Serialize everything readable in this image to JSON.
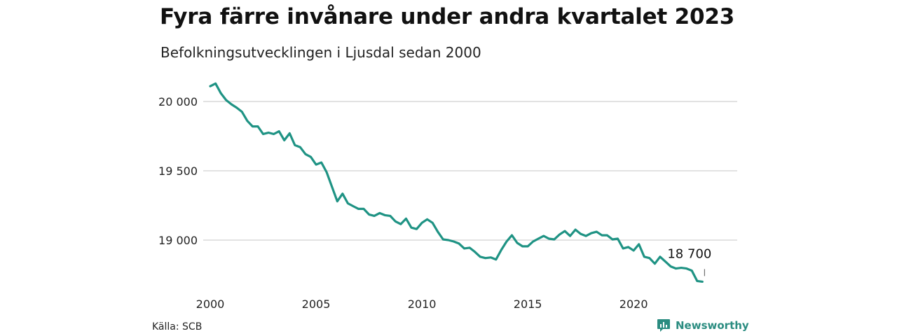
{
  "header": {
    "title": "Fyra färre invånare under andra kvartalet 2023",
    "subtitle": "Befolkningsutvecklingen i Ljusdal sedan 2000"
  },
  "footer": {
    "source": "Källa: SCB",
    "brand": "Newsworthy",
    "brand_icon": "bar-chart-speech-bubble-icon"
  },
  "colors": {
    "line": "#1f9384",
    "grid": "#d9d9d9",
    "brand": "#2a8c80"
  },
  "chart_data": {
    "type": "line",
    "title": "Fyra färre invånare under andra kvartalet 2023",
    "subtitle": "Befolkningsutvecklingen i Ljusdal sedan 2000",
    "xlabel": "",
    "ylabel": "",
    "xlim": [
      2000,
      2024
    ],
    "ylim": [
      18650,
      20150
    ],
    "grid": true,
    "legend": "none",
    "x_ticks": [
      2000,
      2005,
      2010,
      2015,
      2020
    ],
    "x_tick_labels": [
      "2000",
      "2005",
      "2010",
      "2015",
      "2020"
    ],
    "y_ticks": [
      19000,
      19500,
      20000
    ],
    "y_tick_labels": [
      "19 000",
      "19 500",
      "20 000"
    ],
    "annotation": {
      "text": "18 700",
      "x": 2023.25,
      "y": 18700
    },
    "series": [
      {
        "x": [
          2000.0,
          2000.25,
          2000.5,
          2000.75,
          2001.0,
          2001.25,
          2001.5,
          2001.75,
          2002.0,
          2002.25,
          2002.5,
          2002.75,
          2003.0,
          2003.25,
          2003.5,
          2003.75,
          2004.0,
          2004.25,
          2004.5,
          2004.75,
          2005.0,
          2005.25,
          2005.5,
          2005.75,
          2006.0,
          2006.25,
          2006.5,
          2006.75,
          2007.0,
          2007.25,
          2007.5,
          2007.75,
          2008.0,
          2008.25,
          2008.5,
          2008.75,
          2009.0,
          2009.25,
          2009.5,
          2009.75,
          2010.0,
          2010.25,
          2010.5,
          2010.75,
          2011.0,
          2011.25,
          2011.5,
          2011.75,
          2012.0,
          2012.25,
          2012.5,
          2012.75,
          2013.0,
          2013.25,
          2013.5,
          2013.75,
          2014.0,
          2014.25,
          2014.5,
          2014.75,
          2015.0,
          2015.25,
          2015.5,
          2015.75,
          2016.0,
          2016.25,
          2016.5,
          2016.75,
          2017.0,
          2017.25,
          2017.5,
          2017.75,
          2018.0,
          2018.25,
          2018.5,
          2018.75,
          2019.0,
          2019.25,
          2019.5,
          2019.75,
          2020.0,
          2020.25,
          2020.5,
          2020.75,
          2021.0,
          2021.25,
          2021.5,
          2021.75,
          2022.0,
          2022.25,
          2022.5,
          2022.75,
          2023.0,
          2023.25
        ],
        "y": [
          20110,
          20130,
          20060,
          20010,
          19980,
          19955,
          19925,
          19860,
          19820,
          19820,
          19765,
          19775,
          19765,
          19785,
          19720,
          19770,
          19685,
          19670,
          19620,
          19600,
          19545,
          19560,
          19490,
          19385,
          19280,
          19335,
          19265,
          19245,
          19225,
          19225,
          19185,
          19175,
          19195,
          19180,
          19175,
          19135,
          19115,
          19155,
          19090,
          19080,
          19125,
          19150,
          19125,
          19060,
          19005,
          19000,
          18990,
          18975,
          18940,
          18945,
          18915,
          18880,
          18870,
          18875,
          18860,
          18930,
          18990,
          19035,
          18980,
          18955,
          18955,
          18990,
          19010,
          19030,
          19010,
          19005,
          19040,
          19065,
          19030,
          19075,
          19045,
          19030,
          19050,
          19060,
          19035,
          19035,
          19005,
          19010,
          18940,
          18950,
          18925,
          18970,
          18880,
          18870,
          18830,
          18880,
          18845,
          18810,
          18795,
          18800,
          18795,
          18780,
          18705,
          18700
        ]
      }
    ]
  }
}
